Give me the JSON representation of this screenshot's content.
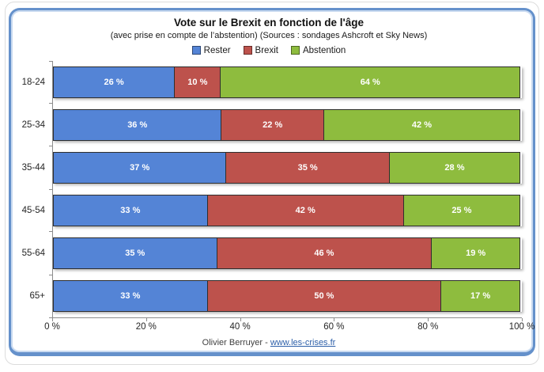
{
  "chart_data": {
    "type": "bar",
    "orientation": "horizontal",
    "stacked": true,
    "title": "Vote sur le Brexit en fonction de l'âge",
    "subtitle": "(avec prise en compte de l’abstention) (Sources : sondages Ashcroft et Sky News)",
    "categories": [
      "18-24",
      "25-34",
      "35-44",
      "45-54",
      "55-64",
      "65+"
    ],
    "series": [
      {
        "name": "Rester",
        "color": "#5484d6",
        "values": [
          26,
          36,
          37,
          33,
          35,
          33
        ]
      },
      {
        "name": "Brexit",
        "color": "#bd524c",
        "values": [
          10,
          22,
          35,
          42,
          46,
          50
        ]
      },
      {
        "name": "Abstention",
        "color": "#8ebc3e",
        "values": [
          64,
          42,
          28,
          25,
          19,
          17
        ]
      }
    ],
    "value_label_format": "{v} %",
    "x_ticks": [
      "0 %",
      "20 %",
      "40 %",
      "60 %",
      "80 %",
      "100 %"
    ],
    "xlim": [
      0,
      100
    ],
    "xlabel": "",
    "ylabel": "",
    "grid": false,
    "legend_position": "top"
  },
  "footer": {
    "author": "Olivier Berruyer",
    "separator": " - ",
    "link_text": "www.les-crises.fr",
    "link_color": "#2d5fa8"
  },
  "colors": {
    "frame_border": "#6591cb",
    "outer_border": "#dcdcdc",
    "axis": "#8c8c8c",
    "bar_value_text": "#ffffff"
  }
}
